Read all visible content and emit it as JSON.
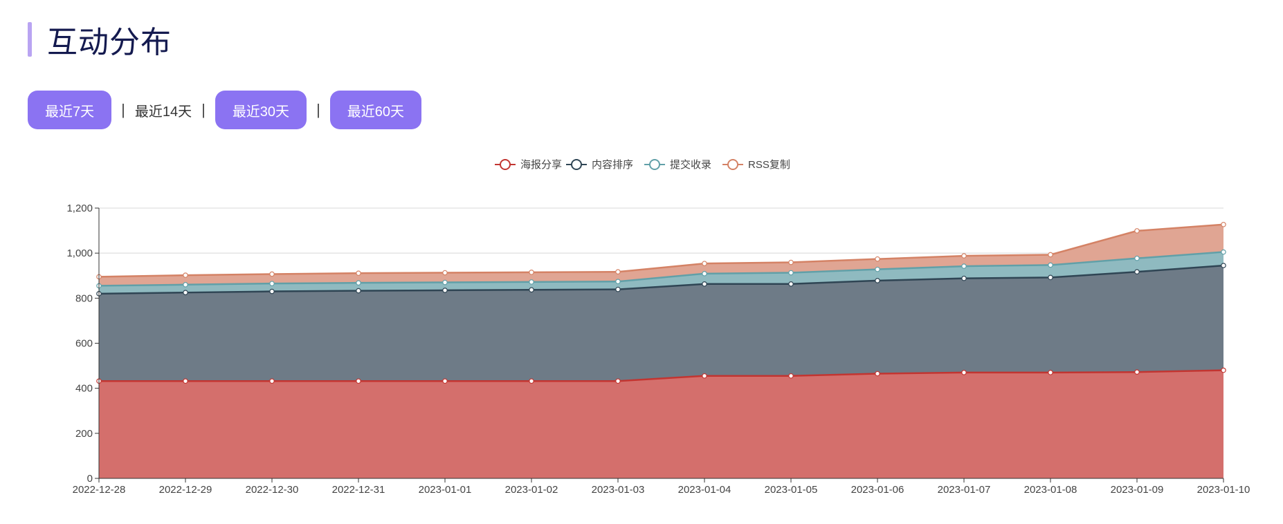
{
  "header": {
    "title": "互动分布"
  },
  "range_buttons": [
    {
      "label": "最近7天",
      "style": "filled"
    },
    {
      "label": "最近14天",
      "style": "plain"
    },
    {
      "label": "最近30天",
      "style": "filled"
    },
    {
      "label": "最近60天",
      "style": "filled"
    }
  ],
  "separator": "|",
  "chart_data": {
    "type": "area",
    "stacked": true,
    "legend_position": "top-center",
    "x": [
      "2022-12-28",
      "2022-12-29",
      "2022-12-30",
      "2022-12-31",
      "2023-01-01",
      "2023-01-02",
      "2023-01-03",
      "2023-01-04",
      "2023-01-05",
      "2023-01-06",
      "2023-01-07",
      "2023-01-08",
      "2023-01-09",
      "2023-01-10"
    ],
    "ylim": [
      0,
      1200
    ],
    "yticks": [
      0,
      200,
      400,
      600,
      800,
      1000,
      1200
    ],
    "grid": true,
    "series": [
      {
        "name": "海报分享",
        "color": "#c23531",
        "fill": "#d46f6c",
        "values": [
          432,
          432,
          432,
          432,
          432,
          432,
          432,
          455,
          455,
          465,
          470,
          470,
          472,
          480
        ]
      },
      {
        "name": "内容排序",
        "color": "#2f4554",
        "fill": "#6e7b87",
        "values": [
          388,
          393,
          398,
          401,
          403,
          405,
          407,
          408,
          408,
          413,
          418,
          422,
          445,
          465
        ]
      },
      {
        "name": "提交收录",
        "color": "#61a0a8",
        "fill": "#8fbac0",
        "values": [
          35,
          35,
          35,
          35,
          35,
          35,
          35,
          46,
          50,
          50,
          54,
          55,
          60,
          60
        ]
      },
      {
        "name": "RSS复制",
        "color": "#d48265",
        "fill": "#e0a593",
        "values": [
          40,
          42,
          42,
          43,
          43,
          43,
          43,
          45,
          46,
          46,
          46,
          46,
          122,
          122
        ]
      }
    ]
  }
}
